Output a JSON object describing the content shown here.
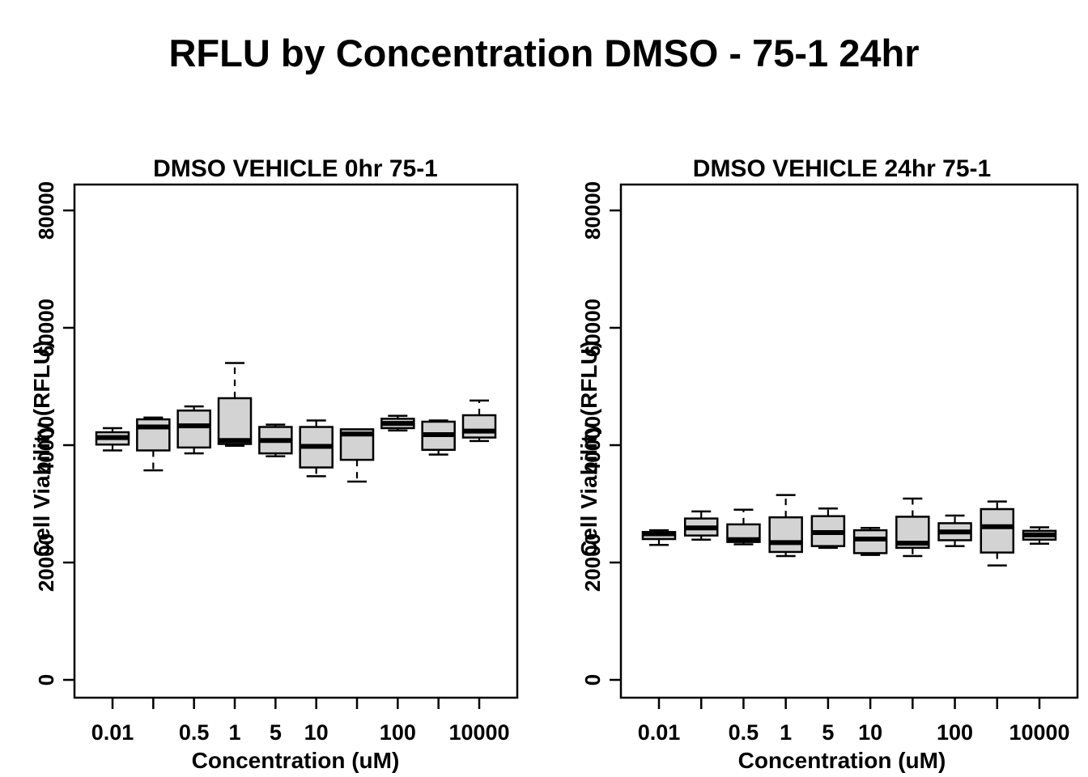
{
  "figure": {
    "title": "RFLU by Concentration DMSO - 75-1 24hr",
    "background": "#ffffff",
    "box_fill": "#d3d3d3",
    "line_color": "#000000"
  },
  "chart_data": [
    {
      "type": "boxplot",
      "title": "DMSO VEHICLE 0hr 75-1",
      "xlabel": "Concentration (uM)",
      "ylabel": "Cell Viability (RFLU)",
      "categories": [
        "0.01",
        "",
        "0.5",
        "1",
        "5",
        "10",
        "",
        "100",
        "",
        "10000"
      ],
      "yticks": [
        0,
        20000,
        40000,
        60000,
        80000
      ],
      "ylim": [
        -3000,
        84400
      ],
      "grid": false,
      "boxes": [
        {
          "lo": 39100,
          "q1": 40100,
          "med": 41300,
          "q3": 42200,
          "hi": 42900
        },
        {
          "lo": 35700,
          "q1": 39100,
          "med": 43100,
          "q3": 44400,
          "hi": 44700
        },
        {
          "lo": 38600,
          "q1": 39600,
          "med": 43300,
          "q3": 45900,
          "hi": 46600
        },
        {
          "lo": 39900,
          "q1": 40200,
          "med": 40800,
          "q3": 48000,
          "hi": 54000
        },
        {
          "lo": 38100,
          "q1": 38600,
          "med": 40800,
          "q3": 43100,
          "hi": 43500
        },
        {
          "lo": 34700,
          "q1": 36200,
          "med": 39800,
          "q3": 43100,
          "hi": 44200
        },
        {
          "lo": 33800,
          "q1": 37500,
          "med": 41900,
          "q3": 42700,
          "hi": 42700
        },
        {
          "lo": 42500,
          "q1": 42900,
          "med": 43700,
          "q3": 44500,
          "hi": 45000
        },
        {
          "lo": 38400,
          "q1": 39200,
          "med": 41800,
          "q3": 44000,
          "hi": 44200
        },
        {
          "lo": 40700,
          "q1": 41300,
          "med": 42400,
          "q3": 45100,
          "hi": 47600
        }
      ]
    },
    {
      "type": "boxplot",
      "title": "DMSO VEHICLE 24hr 75-1",
      "xlabel": "Concentration (uM)",
      "ylabel": "Cell Viability (RFLU)",
      "categories": [
        "0.01",
        "",
        "0.5",
        "1",
        "5",
        "10",
        "",
        "100",
        "",
        "10000"
      ],
      "yticks": [
        0,
        20000,
        40000,
        60000,
        80000
      ],
      "ylim": [
        -3000,
        84400
      ],
      "grid": false,
      "boxes": [
        {
          "lo": 23000,
          "q1": 24000,
          "med": 24900,
          "q3": 25200,
          "hi": 25500
        },
        {
          "lo": 23900,
          "q1": 24600,
          "med": 25900,
          "q3": 27500,
          "hi": 28700
        },
        {
          "lo": 23100,
          "q1": 23500,
          "med": 23900,
          "q3": 26500,
          "hi": 29000
        },
        {
          "lo": 21100,
          "q1": 21800,
          "med": 23400,
          "q3": 27700,
          "hi": 31500
        },
        {
          "lo": 22500,
          "q1": 22800,
          "med": 25100,
          "q3": 27900,
          "hi": 29200
        },
        {
          "lo": 21300,
          "q1": 21600,
          "med": 24000,
          "q3": 25500,
          "hi": 25900
        },
        {
          "lo": 21100,
          "q1": 22500,
          "med": 23300,
          "q3": 27800,
          "hi": 30900
        },
        {
          "lo": 22800,
          "q1": 23800,
          "med": 25200,
          "q3": 26700,
          "hi": 28000
        },
        {
          "lo": 19500,
          "q1": 21700,
          "med": 26100,
          "q3": 29100,
          "hi": 30400
        },
        {
          "lo": 23200,
          "q1": 23900,
          "med": 24700,
          "q3": 25400,
          "hi": 26000
        }
      ]
    }
  ]
}
